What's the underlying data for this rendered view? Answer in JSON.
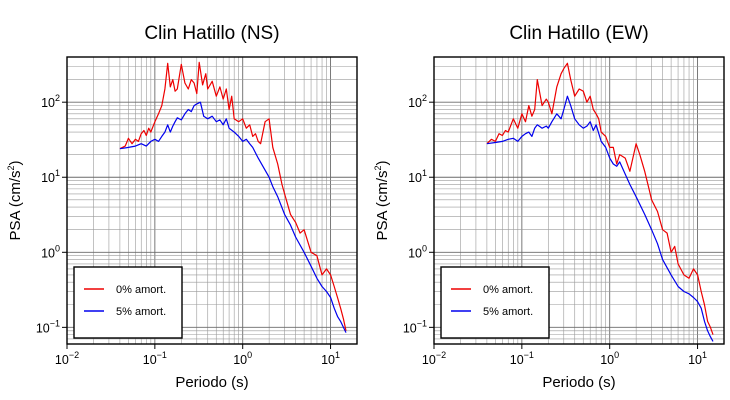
{
  "chart_data": [
    {
      "type": "line",
      "title": "Clin Hatillo (NS)",
      "xlabel": "Periodo (s)",
      "ylabel_main": "PSA (cm/s",
      "ylabel_sup": "2",
      "ylabel_close": ")",
      "x_scale": "log",
      "y_scale": "log",
      "xlim": [
        0.01,
        20
      ],
      "ylim": [
        0.06,
        400
      ],
      "x_ticks": [
        {
          "value": 0.01,
          "base": "10",
          "exp": "−2"
        },
        {
          "value": 0.1,
          "base": "10",
          "exp": "−1"
        },
        {
          "value": 1,
          "base": "10",
          "exp": "0"
        },
        {
          "value": 10,
          "base": "10",
          "exp": "1"
        }
      ],
      "y_ticks": [
        {
          "value": 0.1,
          "base": "10",
          "exp": "−1"
        },
        {
          "value": 1,
          "base": "10",
          "exp": "0"
        },
        {
          "value": 10,
          "base": "10",
          "exp": "1"
        },
        {
          "value": 100,
          "base": "10",
          "exp": "2"
        }
      ],
      "grid": true,
      "legend_position": "bottom-left",
      "series": [
        {
          "name": "0% amort.",
          "color": "#ee0000",
          "x": [
            0.04,
            0.046,
            0.05,
            0.055,
            0.06,
            0.065,
            0.07,
            0.075,
            0.08,
            0.085,
            0.09,
            0.1,
            0.11,
            0.12,
            0.13,
            0.14,
            0.15,
            0.16,
            0.17,
            0.18,
            0.2,
            0.22,
            0.24,
            0.26,
            0.28,
            0.3,
            0.32,
            0.35,
            0.38,
            0.4,
            0.45,
            0.5,
            0.55,
            0.6,
            0.65,
            0.7,
            0.75,
            0.8,
            0.9,
            1.0,
            1.1,
            1.2,
            1.3,
            1.4,
            1.5,
            1.6,
            1.8,
            2.0,
            2.2,
            2.5,
            2.8,
            3.0,
            3.5,
            4.0,
            4.5,
            5.0,
            6.0,
            7.0,
            8.0,
            9.0,
            10.0,
            11.0,
            12.0,
            13.0,
            14.0,
            15.0
          ],
          "values": [
            24,
            26,
            33,
            28,
            32,
            30,
            38,
            42,
            36,
            45,
            40,
            55,
            70,
            90,
            150,
            330,
            160,
            200,
            140,
            150,
            320,
            180,
            150,
            200,
            180,
            130,
            340,
            170,
            240,
            150,
            190,
            120,
            160,
            110,
            150,
            80,
            120,
            60,
            55,
            60,
            45,
            50,
            35,
            38,
            30,
            28,
            55,
            60,
            25,
            15,
            8,
            6,
            3.2,
            2.5,
            1.8,
            2.0,
            1.0,
            0.9,
            0.5,
            0.6,
            0.5,
            0.35,
            0.25,
            0.18,
            0.13,
            0.09
          ]
        },
        {
          "name": "5% amort.",
          "color": "#0000ee",
          "x": [
            0.04,
            0.05,
            0.06,
            0.07,
            0.08,
            0.09,
            0.1,
            0.11,
            0.12,
            0.13,
            0.14,
            0.15,
            0.16,
            0.17,
            0.18,
            0.2,
            0.22,
            0.24,
            0.26,
            0.28,
            0.3,
            0.33,
            0.36,
            0.4,
            0.45,
            0.5,
            0.55,
            0.6,
            0.65,
            0.7,
            0.8,
            0.9,
            1.0,
            1.1,
            1.2,
            1.3,
            1.5,
            1.7,
            2.0,
            2.2,
            2.5,
            3.0,
            3.5,
            4.0,
            5.0,
            6.0,
            7.0,
            8.0,
            9.0,
            10.0,
            11.0,
            12.0,
            13.0,
            14.0,
            15.0
          ],
          "values": [
            24,
            25,
            26,
            28,
            26,
            30,
            32,
            30,
            35,
            40,
            50,
            40,
            48,
            55,
            62,
            58,
            70,
            80,
            75,
            90,
            95,
            100,
            65,
            60,
            65,
            55,
            58,
            50,
            60,
            45,
            40,
            35,
            30,
            32,
            28,
            25,
            18,
            14,
            10,
            7.5,
            5.5,
            3.2,
            2.3,
            1.6,
            1.0,
            0.65,
            0.45,
            0.35,
            0.3,
            0.25,
            0.18,
            0.14,
            0.12,
            0.1,
            0.085
          ]
        }
      ]
    },
    {
      "type": "line",
      "title": "Clin Hatillo (EW)",
      "xlabel": "Periodo (s)",
      "ylabel_main": "PSA (cm/s",
      "ylabel_sup": "2",
      "ylabel_close": ")",
      "x_scale": "log",
      "y_scale": "log",
      "xlim": [
        0.01,
        20
      ],
      "ylim": [
        0.06,
        400
      ],
      "x_ticks": [
        {
          "value": 0.01,
          "base": "10",
          "exp": "−2"
        },
        {
          "value": 0.1,
          "base": "10",
          "exp": "−1"
        },
        {
          "value": 1,
          "base": "10",
          "exp": "0"
        },
        {
          "value": 10,
          "base": "10",
          "exp": "1"
        }
      ],
      "y_ticks": [
        {
          "value": 0.1,
          "base": "10",
          "exp": "−1"
        },
        {
          "value": 1,
          "base": "10",
          "exp": "0"
        },
        {
          "value": 10,
          "base": "10",
          "exp": "1"
        },
        {
          "value": 100,
          "base": "10",
          "exp": "2"
        }
      ],
      "grid": true,
      "legend_position": "bottom-left",
      "series": [
        {
          "name": "0% amort.",
          "color": "#ee0000",
          "x": [
            0.04,
            0.045,
            0.05,
            0.055,
            0.06,
            0.065,
            0.07,
            0.08,
            0.09,
            0.1,
            0.11,
            0.12,
            0.13,
            0.14,
            0.15,
            0.17,
            0.19,
            0.2,
            0.22,
            0.25,
            0.28,
            0.3,
            0.33,
            0.36,
            0.4,
            0.45,
            0.5,
            0.55,
            0.6,
            0.65,
            0.7,
            0.75,
            0.8,
            0.9,
            1.0,
            1.1,
            1.2,
            1.3,
            1.5,
            1.7,
            2.0,
            2.2,
            2.5,
            2.8,
            3.0,
            3.5,
            4.0,
            4.5,
            5.0,
            5.5,
            6.0,
            7.0,
            8.0,
            9.0,
            10.0,
            11.0,
            12.0,
            13.0,
            14.0,
            15.0
          ],
          "values": [
            28,
            32,
            30,
            38,
            36,
            42,
            40,
            60,
            45,
            70,
            55,
            90,
            65,
            80,
            200,
            90,
            110,
            100,
            70,
            160,
            240,
            280,
            330,
            200,
            120,
            150,
            140,
            100,
            120,
            80,
            70,
            60,
            40,
            35,
            25,
            25,
            15,
            20,
            18,
            12,
            28,
            20,
            12,
            7,
            5,
            3.5,
            2.0,
            1.8,
            1.0,
            1.2,
            0.7,
            0.5,
            0.45,
            0.6,
            0.5,
            0.3,
            0.2,
            0.12,
            0.1,
            0.08
          ]
        },
        {
          "name": "5% amort.",
          "color": "#0000ee",
          "x": [
            0.04,
            0.05,
            0.06,
            0.07,
            0.08,
            0.09,
            0.1,
            0.11,
            0.12,
            0.13,
            0.14,
            0.15,
            0.17,
            0.19,
            0.2,
            0.22,
            0.25,
            0.28,
            0.3,
            0.33,
            0.36,
            0.4,
            0.45,
            0.5,
            0.55,
            0.6,
            0.65,
            0.7,
            0.8,
            0.9,
            1.0,
            1.1,
            1.2,
            1.3,
            1.5,
            1.7,
            2.0,
            2.5,
            3.0,
            3.5,
            4.0,
            5.0,
            6.0,
            7.0,
            8.0,
            9.0,
            10.0,
            11.0,
            12.0,
            13.0,
            14.0,
            15.0
          ],
          "values": [
            28,
            29,
            30,
            32,
            33,
            30,
            35,
            38,
            40,
            35,
            45,
            50,
            45,
            48,
            45,
            55,
            70,
            60,
            80,
            120,
            90,
            60,
            50,
            45,
            48,
            55,
            42,
            50,
            30,
            25,
            18,
            15,
            14,
            16,
            11,
            8,
            5.5,
            3.2,
            2.0,
            1.3,
            0.8,
            0.5,
            0.35,
            0.3,
            0.28,
            0.25,
            0.22,
            0.18,
            0.12,
            0.09,
            0.075,
            0.065
          ]
        }
      ]
    }
  ]
}
